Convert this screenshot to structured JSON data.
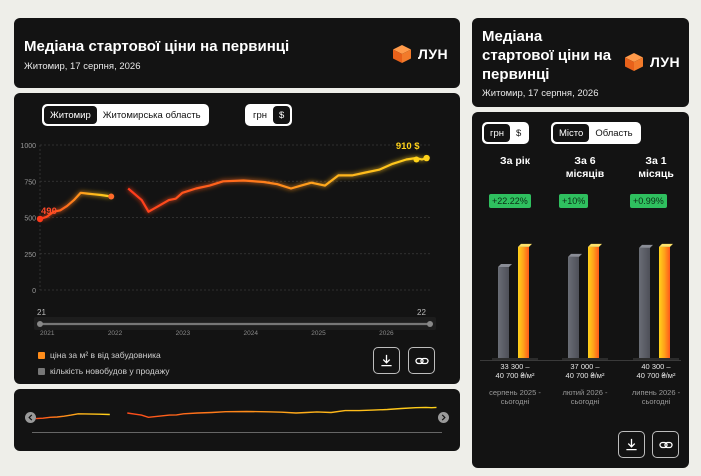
{
  "left_header": {
    "title": "Медіана стартової ціни на первинці",
    "subtitle": "Житомир, 17 серпня, 2026"
  },
  "right_header": {
    "title": "Медіана стартової ціни на первинці",
    "subtitle": "Житомир, 17 серпня, 2026"
  },
  "brand": {
    "name": "ЛУН",
    "color": "#f26a1b"
  },
  "region_toggle": {
    "options": [
      "Житомир",
      "Житомирська область"
    ],
    "selected": "Житомир"
  },
  "currency_toggle": {
    "options": [
      "грн",
      "$"
    ],
    "selected": "$"
  },
  "right_currency_toggle": {
    "options": [
      "грн",
      "$"
    ],
    "selected": "грн"
  },
  "scope_toggle": {
    "options": [
      "Місто",
      "Область"
    ],
    "selected": "Місто"
  },
  "chart_data": {
    "type": "line",
    "title": "",
    "xlabel": "",
    "ylabel": "",
    "x_ticks": [
      "2021",
      "2022",
      "2023",
      "2024",
      "2025",
      "2026"
    ],
    "y_ticks": [
      0,
      250,
      500,
      750,
      1000
    ],
    "ylim": [
      0,
      1000
    ],
    "grid": true,
    "series": [
      {
        "name": "ціна за м² в від забудовника",
        "points": [
          [
            2021.0,
            490
          ],
          [
            2021.1,
            505
          ],
          [
            2021.2,
            540
          ],
          [
            2021.3,
            550
          ],
          [
            2021.4,
            580
          ],
          [
            2021.5,
            620
          ],
          [
            2021.6,
            670
          ],
          [
            2021.7,
            665
          ],
          [
            2021.8,
            660
          ],
          [
            2021.9,
            655
          ],
          [
            2022.05,
            645
          ],
          [
            2022.3,
            700
          ],
          [
            2022.4,
            660
          ],
          [
            2022.5,
            620
          ],
          [
            2022.6,
            540
          ],
          [
            2022.75,
            580
          ],
          [
            2022.9,
            620
          ],
          [
            2023.0,
            630
          ],
          [
            2023.1,
            670
          ],
          [
            2023.3,
            700
          ],
          [
            2023.5,
            720
          ],
          [
            2023.7,
            750
          ],
          [
            2024.0,
            755
          ],
          [
            2024.3,
            745
          ],
          [
            2024.5,
            730
          ],
          [
            2024.7,
            700
          ],
          [
            2024.85,
            720
          ],
          [
            2025.0,
            740
          ],
          [
            2025.2,
            720
          ],
          [
            2025.4,
            790
          ],
          [
            2025.6,
            790
          ],
          [
            2025.8,
            810
          ],
          [
            2026.0,
            830
          ],
          [
            2026.2,
            870
          ],
          [
            2026.4,
            900
          ],
          [
            2026.55,
            910
          ],
          [
            2026.63,
            900
          ],
          [
            2026.7,
            910
          ]
        ]
      },
      {
        "name": "кількість новобудов у продажу",
        "start_value": 21,
        "end_value": 22
      }
    ],
    "annotations": {
      "start_price": "490",
      "end_price": "910 $",
      "start_count": "21",
      "end_count": "22"
    }
  },
  "legend": {
    "price": "ціна за м² в від забудовника",
    "count": "кількість новобудов у продажу",
    "price_color": "#ff8c1a",
    "count_color": "#777777"
  },
  "columns": [
    {
      "head": "За рік",
      "badge": "+22.22%",
      "range": "33 300 –\n40 700 ₴/м²",
      "period": "серпень 2025 -\nсьогодні",
      "before": 33300,
      "after": 40700
    },
    {
      "head": "За 6\nмісяців",
      "badge": "+10%",
      "range": "37 000 –\n40 700 ₴/м²",
      "period": "лютий 2026 -\nсьогодні",
      "before": 37000,
      "after": 40700
    },
    {
      "head": "За 1\nмісяць",
      "badge": "+0.99%",
      "range": "40 300 –\n40 700 ₴/м²",
      "period": "липень 2026 -\nсьогодні",
      "before": 40300,
      "after": 40700
    }
  ],
  "icons": {
    "download": "download-icon",
    "share": "link-icon",
    "prev": "chevron-left-icon",
    "next": "chevron-right-icon"
  }
}
